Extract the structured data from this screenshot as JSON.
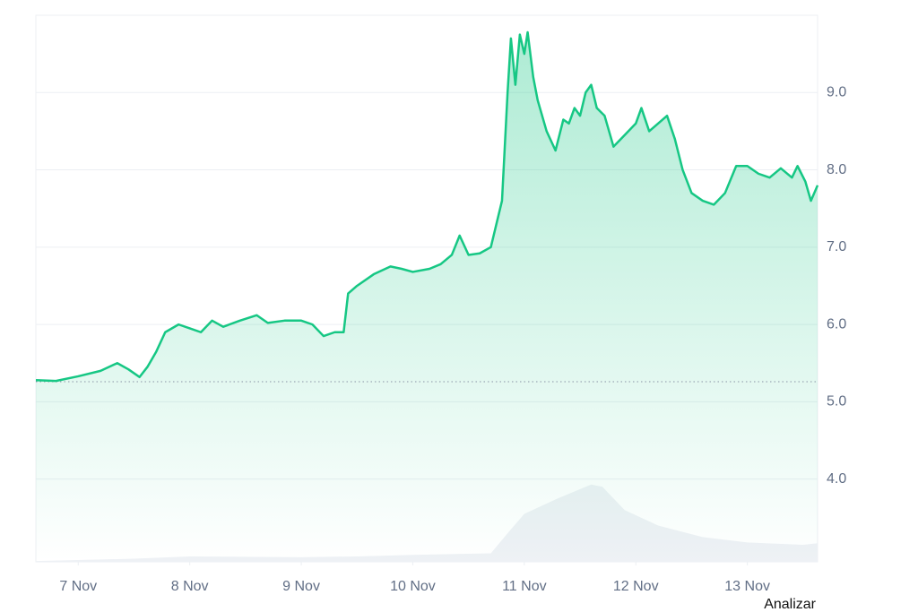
{
  "chart_data": {
    "type": "line",
    "x": [
      6.62,
      6.8,
      7.0,
      7.2,
      7.35,
      7.45,
      7.55,
      7.62,
      7.7,
      7.78,
      7.9,
      8.0,
      8.1,
      8.2,
      8.3,
      8.45,
      8.6,
      8.7,
      8.85,
      9.0,
      9.1,
      9.2,
      9.3,
      9.38,
      9.42,
      9.5,
      9.65,
      9.8,
      9.9,
      10.0,
      10.15,
      10.25,
      10.35,
      10.42,
      10.5,
      10.6,
      10.7,
      10.75,
      10.8,
      10.85,
      10.88,
      10.92,
      10.96,
      11.0,
      11.03,
      11.08,
      11.12,
      11.2,
      11.28,
      11.35,
      11.4,
      11.45,
      11.5,
      11.55,
      11.6,
      11.65,
      11.72,
      11.8,
      11.9,
      12.0,
      12.05,
      12.12,
      12.2,
      12.28,
      12.35,
      12.42,
      12.5,
      12.6,
      12.7,
      12.8,
      12.9,
      13.0,
      13.1,
      13.2,
      13.3,
      13.4,
      13.45,
      13.52,
      13.57,
      13.63
    ],
    "series": [
      {
        "color": "#16c784",
        "values": [
          5.28,
          5.27,
          5.33,
          5.4,
          5.5,
          5.42,
          5.32,
          5.45,
          5.65,
          5.9,
          6.0,
          5.95,
          5.9,
          6.05,
          5.97,
          6.05,
          6.12,
          6.02,
          6.05,
          6.05,
          6.0,
          5.85,
          5.9,
          5.9,
          6.4,
          6.5,
          6.65,
          6.75,
          6.72,
          6.68,
          6.72,
          6.78,
          6.9,
          7.15,
          6.9,
          6.92,
          7.0,
          7.3,
          7.6,
          9.0,
          9.7,
          9.1,
          9.75,
          9.5,
          9.78,
          9.2,
          8.9,
          8.5,
          8.25,
          8.65,
          8.6,
          8.8,
          8.7,
          9.0,
          9.1,
          8.8,
          8.7,
          8.3,
          8.45,
          8.6,
          8.8,
          8.5,
          8.6,
          8.7,
          8.4,
          8.0,
          7.7,
          7.6,
          7.55,
          7.7,
          8.05,
          8.05,
          7.95,
          7.9,
          8.02,
          7.9,
          8.05,
          7.85,
          7.6,
          7.8
        ]
      }
    ],
    "volume": {
      "color": "#eef1f5",
      "x": [
        6.62,
        7.5,
        8.0,
        9.0,
        9.5,
        10.0,
        10.7,
        10.85,
        11.0,
        11.3,
        11.6,
        11.7,
        11.9,
        12.2,
        12.6,
        13.0,
        13.5,
        13.63
      ],
      "values": [
        2.94,
        2.97,
        3.0,
        2.99,
        3.0,
        3.02,
        3.04,
        3.3,
        3.55,
        3.75,
        3.93,
        3.9,
        3.6,
        3.4,
        3.25,
        3.18,
        3.15,
        3.17
      ]
    },
    "baseline": 5.26,
    "xlim": [
      6.62,
      13.63
    ],
    "xticks": [
      {
        "value": 7,
        "label": "7 Nov"
      },
      {
        "value": 8,
        "label": "8 Nov"
      },
      {
        "value": 9,
        "label": "9 Nov"
      },
      {
        "value": 10,
        "label": "10 Nov"
      },
      {
        "value": 11,
        "label": "11 Nov"
      },
      {
        "value": 12,
        "label": "12 Nov"
      },
      {
        "value": 13,
        "label": "13 Nov"
      }
    ],
    "ylim": [
      2.93,
      10.0
    ],
    "yticks": [
      {
        "value": 4,
        "label": "4.0"
      },
      {
        "value": 5,
        "label": "5.0"
      },
      {
        "value": 6,
        "label": "6.0"
      },
      {
        "value": 7,
        "label": "7.0"
      },
      {
        "value": 8,
        "label": "8.0"
      },
      {
        "value": 9,
        "label": "9.0"
      }
    ],
    "grid": true,
    "annotation": "Analizar"
  }
}
